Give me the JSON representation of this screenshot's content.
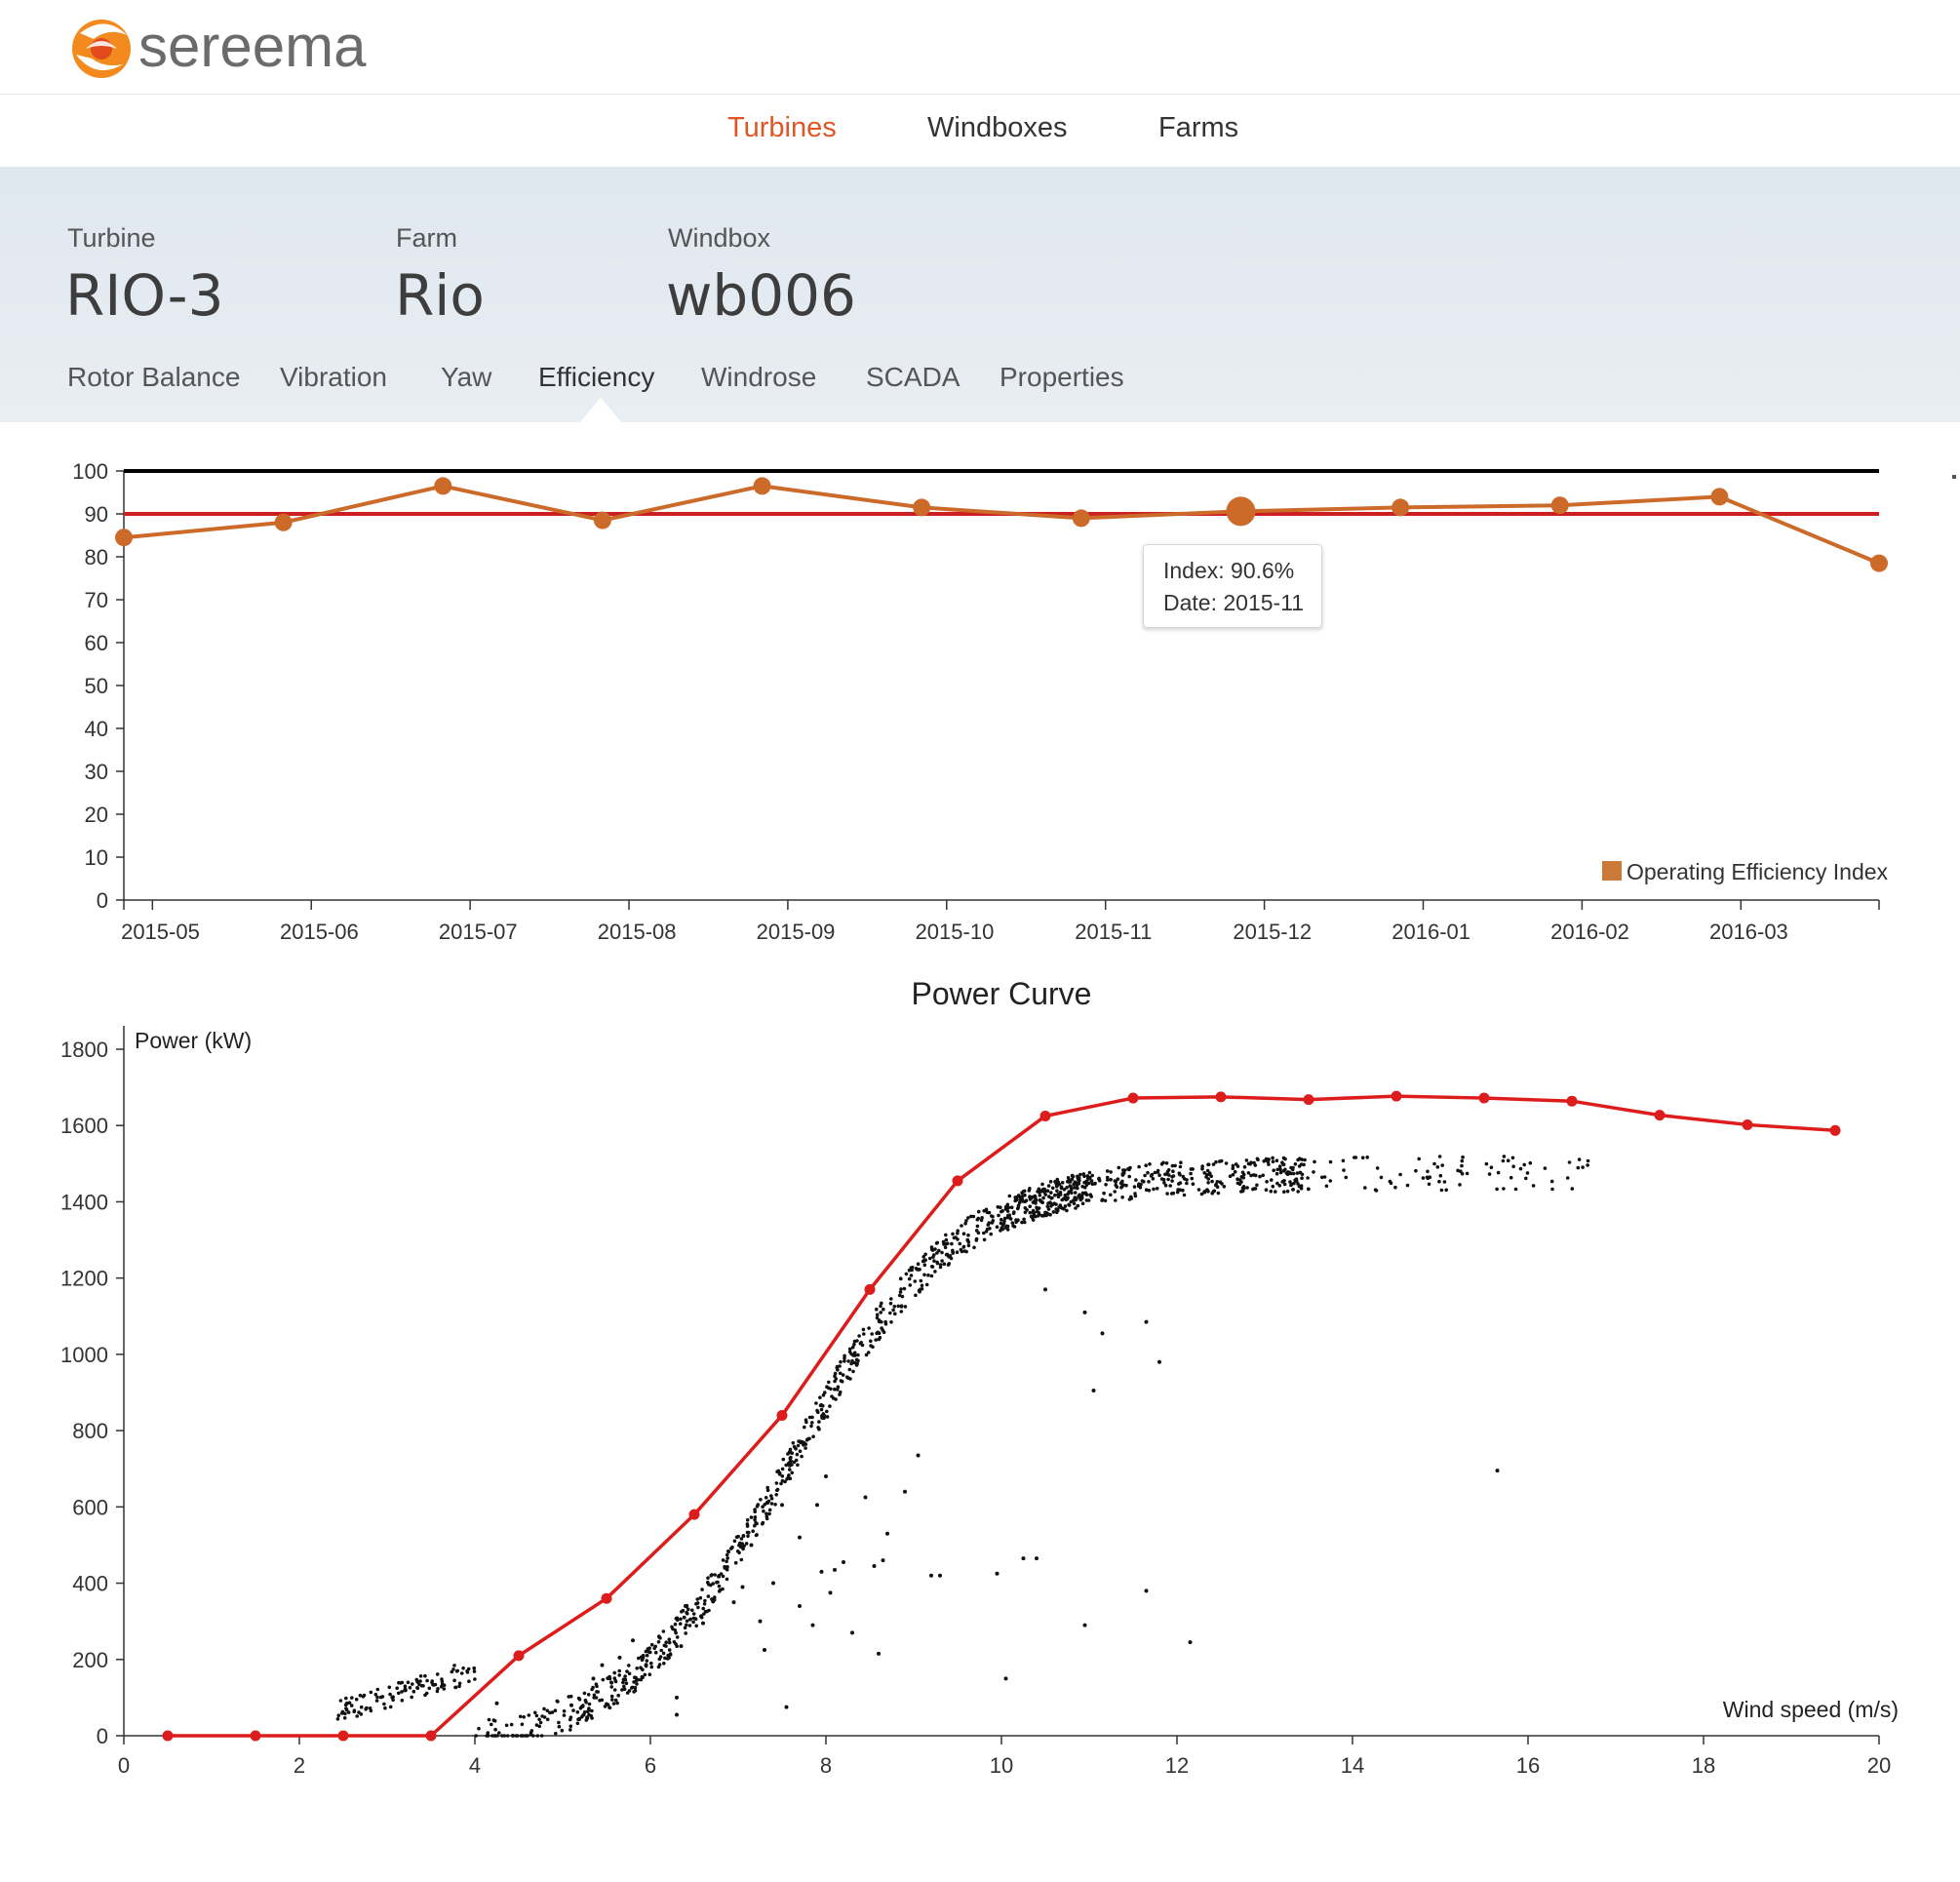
{
  "brand": {
    "name": "sereema",
    "accent": "#e05525",
    "icon": "sereema-swirl-logo"
  },
  "nav": {
    "items": [
      {
        "label": "Turbines",
        "active": true
      },
      {
        "label": "Windboxes",
        "active": false
      },
      {
        "label": "Farms",
        "active": false
      }
    ]
  },
  "header": {
    "turbine": {
      "label": "Turbine",
      "value": "RIO-3"
    },
    "farm": {
      "label": "Farm",
      "value": "Rio"
    },
    "windbox": {
      "label": "Windbox",
      "value": "wb006"
    }
  },
  "subtabs": [
    "Rotor Balance",
    "Vibration",
    "Yaw",
    "Efficiency",
    "Windrose",
    "SCADA",
    "Properties"
  ],
  "active_subtab": "Efficiency",
  "tooltip": {
    "index_line": "Index: 90.6%",
    "date_line": "Date: 2015-11"
  },
  "chart_data": [
    {
      "type": "line",
      "title": "",
      "x_ticks": [
        "2015-05",
        "2015-06",
        "2015-07",
        "2015-08",
        "2015-09",
        "2015-10",
        "2015-11",
        "2015-12",
        "2016-01",
        "2016-02",
        "2016-03"
      ],
      "ylim": [
        0,
        100
      ],
      "y_ticks": [
        0,
        10,
        20,
        30,
        40,
        50,
        60,
        70,
        80,
        90,
        100
      ],
      "legend": {
        "label": "Operating Efficiency Index",
        "position": "bottom-right"
      },
      "series": [
        {
          "name": "Operating Efficiency Index",
          "color": "#cc6a2a",
          "values": [
            84.5,
            88,
            96.5,
            88.5,
            96.5,
            91.5,
            89,
            90.6,
            91.5,
            92,
            94,
            78.5
          ]
        }
      ],
      "reference_lines": [
        {
          "value": 100,
          "color": "#000000"
        },
        {
          "value": 90,
          "color": "#cc1f1f"
        }
      ],
      "highlighted_index": 7
    },
    {
      "type": "scatter",
      "title": "Power Curve",
      "xlabel": "Wind speed (m/s)",
      "ylabel": "Power (kW)",
      "xlim": [
        0,
        20
      ],
      "ylim": [
        0,
        1800
      ],
      "x_ticks": [
        0,
        2,
        4,
        6,
        8,
        10,
        12,
        14,
        16,
        18,
        20
      ],
      "y_ticks": [
        0,
        200,
        400,
        600,
        800,
        1000,
        1200,
        1400,
        1600,
        1800
      ],
      "curve": {
        "color": "#dd1c1c",
        "x": [
          0.5,
          1.5,
          2.5,
          3.5,
          4.5,
          5.5,
          6.5,
          7.5,
          8.5,
          9.5,
          10.5,
          11.5,
          12.5,
          13.5,
          14.5,
          15.5,
          16.5,
          17.5,
          18.5,
          19.5
        ],
        "y": [
          0,
          0,
          0,
          0,
          210,
          360,
          580,
          840,
          1170,
          1455,
          1625,
          1672,
          1675,
          1668,
          1677,
          1672,
          1664,
          1627,
          1602,
          1587
        ]
      },
      "scatter_outliers": [
        [
          10.5,
          1170
        ],
        [
          10.95,
          1110
        ],
        [
          11.15,
          1055
        ],
        [
          11.65,
          1085
        ],
        [
          11.8,
          980
        ],
        [
          11.05,
          905
        ],
        [
          9.05,
          735
        ],
        [
          8.0,
          680
        ],
        [
          7.6,
          720
        ],
        [
          7.7,
          520
        ],
        [
          7.5,
          605
        ],
        [
          7.15,
          500
        ],
        [
          7.7,
          340
        ],
        [
          7.9,
          605
        ],
        [
          8.2,
          455
        ],
        [
          8.7,
          530
        ],
        [
          8.65,
          460
        ],
        [
          8.55,
          445
        ],
        [
          8.05,
          375
        ],
        [
          8.1,
          435
        ],
        [
          8.6,
          215
        ],
        [
          7.85,
          290
        ],
        [
          8.3,
          270
        ],
        [
          9.3,
          420
        ],
        [
          9.95,
          425
        ],
        [
          10.25,
          465
        ],
        [
          10.05,
          150
        ],
        [
          10.95,
          290
        ],
        [
          11.65,
          380
        ],
        [
          12.15,
          245
        ],
        [
          15.65,
          695
        ],
        [
          6.4,
          340
        ],
        [
          6.6,
          295
        ],
        [
          6.95,
          350
        ],
        [
          7.25,
          300
        ],
        [
          7.3,
          225
        ],
        [
          6.35,
          235
        ],
        [
          6.3,
          100
        ],
        [
          6.3,
          55
        ],
        [
          7.55,
          75
        ],
        [
          5.8,
          250
        ],
        [
          5.65,
          205
        ],
        [
          5.45,
          185
        ],
        [
          5.35,
          150
        ],
        [
          5.1,
          80
        ],
        [
          4.25,
          85
        ],
        [
          6.85,
          440
        ],
        [
          7.05,
          390
        ],
        [
          7.4,
          400
        ],
        [
          7.95,
          430
        ],
        [
          8.45,
          625
        ],
        [
          8.9,
          640
        ],
        [
          9.2,
          420
        ],
        [
          10.4,
          465
        ]
      ]
    }
  ]
}
